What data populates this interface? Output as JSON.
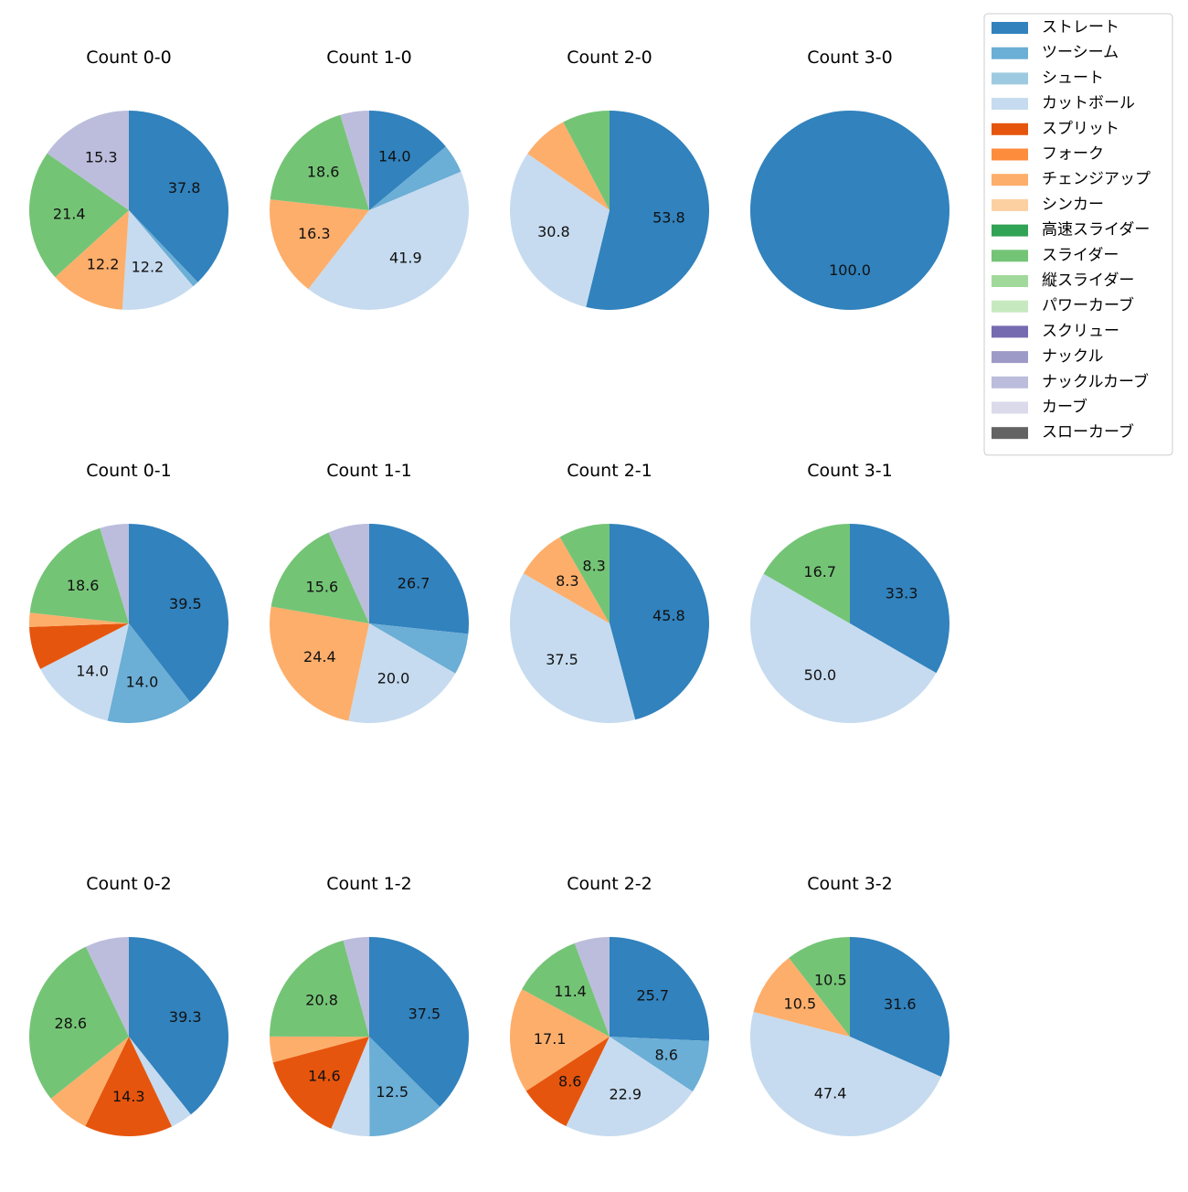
{
  "chart_data": {
    "type": "pie",
    "legend_position": "top-right",
    "legend": [
      {
        "name": "ストレート",
        "color": "#3182bd"
      },
      {
        "name": "ツーシーム",
        "color": "#6baed6"
      },
      {
        "name": "シュート",
        "color": "#9ecae1"
      },
      {
        "name": "カットボール",
        "color": "#c6dbef"
      },
      {
        "name": "スプリット",
        "color": "#e6550d"
      },
      {
        "name": "フォーク",
        "color": "#fd8d3c"
      },
      {
        "name": "チェンジアップ",
        "color": "#fdae6b"
      },
      {
        "name": "シンカー",
        "color": "#fdd0a2"
      },
      {
        "name": "高速スライダー",
        "color": "#31a354"
      },
      {
        "name": "スライダー",
        "color": "#74c476"
      },
      {
        "name": "縦スライダー",
        "color": "#a1d99b"
      },
      {
        "name": "パワーカーブ",
        "color": "#c7e9c0"
      },
      {
        "name": "スクリュー",
        "color": "#756bb1"
      },
      {
        "name": "ナックル",
        "color": "#9e9ac8"
      },
      {
        "name": "ナックルカーブ",
        "color": "#bcbddc"
      },
      {
        "name": "カーブ",
        "color": "#dadaeb"
      },
      {
        "name": "スローカーブ",
        "color": "#636363"
      }
    ],
    "pies": [
      {
        "title": "Count 0-0",
        "slices": [
          {
            "category": "ストレート",
            "value": 37.8,
            "label": "37.8"
          },
          {
            "category": "ツーシーム",
            "value": 1.0,
            "label": ""
          },
          {
            "category": "カットボール",
            "value": 12.2,
            "label": "12.2"
          },
          {
            "category": "チェンジアップ",
            "value": 12.2,
            "label": "12.2"
          },
          {
            "category": "スライダー",
            "value": 21.4,
            "label": "21.4"
          },
          {
            "category": "ナックルカーブ",
            "value": 15.3,
            "label": "15.3"
          }
        ]
      },
      {
        "title": "Count 1-0",
        "slices": [
          {
            "category": "ストレート",
            "value": 14.0,
            "label": "14.0"
          },
          {
            "category": "ツーシーム",
            "value": 4.7,
            "label": ""
          },
          {
            "category": "カットボール",
            "value": 41.9,
            "label": "41.9"
          },
          {
            "category": "チェンジアップ",
            "value": 16.3,
            "label": "16.3"
          },
          {
            "category": "スライダー",
            "value": 18.6,
            "label": "18.6"
          },
          {
            "category": "ナックルカーブ",
            "value": 4.7,
            "label": ""
          }
        ]
      },
      {
        "title": "Count 2-0",
        "slices": [
          {
            "category": "ストレート",
            "value": 53.8,
            "label": "53.8"
          },
          {
            "category": "カットボール",
            "value": 30.8,
            "label": "30.8"
          },
          {
            "category": "チェンジアップ",
            "value": 7.7,
            "label": ""
          },
          {
            "category": "スライダー",
            "value": 7.7,
            "label": ""
          }
        ]
      },
      {
        "title": "Count 3-0",
        "slices": [
          {
            "category": "ストレート",
            "value": 100.0,
            "label": "100.0"
          }
        ]
      },
      {
        "title": "Count 0-1",
        "slices": [
          {
            "category": "ストレート",
            "value": 39.5,
            "label": "39.5"
          },
          {
            "category": "ツーシーム",
            "value": 14.0,
            "label": "14.0"
          },
          {
            "category": "カットボール",
            "value": 14.0,
            "label": "14.0"
          },
          {
            "category": "スプリット",
            "value": 7.0,
            "label": ""
          },
          {
            "category": "チェンジアップ",
            "value": 2.3,
            "label": ""
          },
          {
            "category": "スライダー",
            "value": 18.6,
            "label": "18.6"
          },
          {
            "category": "ナックルカーブ",
            "value": 4.7,
            "label": ""
          }
        ]
      },
      {
        "title": "Count 1-1",
        "slices": [
          {
            "category": "ストレート",
            "value": 26.7,
            "label": "26.7"
          },
          {
            "category": "ツーシーム",
            "value": 6.7,
            "label": ""
          },
          {
            "category": "カットボール",
            "value": 20.0,
            "label": "20.0"
          },
          {
            "category": "チェンジアップ",
            "value": 24.4,
            "label": "24.4"
          },
          {
            "category": "スライダー",
            "value": 15.6,
            "label": "15.6"
          },
          {
            "category": "ナックルカーブ",
            "value": 6.7,
            "label": ""
          }
        ]
      },
      {
        "title": "Count 2-1",
        "slices": [
          {
            "category": "ストレート",
            "value": 45.8,
            "label": "45.8"
          },
          {
            "category": "カットボール",
            "value": 37.5,
            "label": "37.5"
          },
          {
            "category": "チェンジアップ",
            "value": 8.3,
            "label": "8.3"
          },
          {
            "category": "スライダー",
            "value": 8.3,
            "label": "8.3"
          }
        ]
      },
      {
        "title": "Count 3-1",
        "slices": [
          {
            "category": "ストレート",
            "value": 33.3,
            "label": "33.3"
          },
          {
            "category": "カットボール",
            "value": 50.0,
            "label": "50.0"
          },
          {
            "category": "スライダー",
            "value": 16.7,
            "label": "16.7"
          }
        ]
      },
      {
        "title": "Count 0-2",
        "slices": [
          {
            "category": "ストレート",
            "value": 39.3,
            "label": "39.3"
          },
          {
            "category": "カットボール",
            "value": 3.6,
            "label": ""
          },
          {
            "category": "スプリット",
            "value": 14.3,
            "label": "14.3"
          },
          {
            "category": "チェンジアップ",
            "value": 7.1,
            "label": ""
          },
          {
            "category": "スライダー",
            "value": 28.6,
            "label": "28.6"
          },
          {
            "category": "ナックルカーブ",
            "value": 7.1,
            "label": ""
          }
        ]
      },
      {
        "title": "Count 1-2",
        "slices": [
          {
            "category": "ストレート",
            "value": 37.5,
            "label": "37.5"
          },
          {
            "category": "ツーシーム",
            "value": 12.5,
            "label": "12.5"
          },
          {
            "category": "カットボール",
            "value": 6.3,
            "label": ""
          },
          {
            "category": "スプリット",
            "value": 14.6,
            "label": "14.6"
          },
          {
            "category": "チェンジアップ",
            "value": 4.2,
            "label": ""
          },
          {
            "category": "スライダー",
            "value": 20.8,
            "label": "20.8"
          },
          {
            "category": "ナックルカーブ",
            "value": 4.2,
            "label": ""
          }
        ]
      },
      {
        "title": "Count 2-2",
        "slices": [
          {
            "category": "ストレート",
            "value": 25.7,
            "label": "25.7"
          },
          {
            "category": "ツーシーム",
            "value": 8.6,
            "label": "8.6"
          },
          {
            "category": "カットボール",
            "value": 22.9,
            "label": "22.9"
          },
          {
            "category": "スプリット",
            "value": 8.6,
            "label": "8.6"
          },
          {
            "category": "チェンジアップ",
            "value": 17.1,
            "label": "17.1"
          },
          {
            "category": "スライダー",
            "value": 11.4,
            "label": "11.4"
          },
          {
            "category": "ナックルカーブ",
            "value": 5.7,
            "label": ""
          }
        ]
      },
      {
        "title": "Count 3-2",
        "slices": [
          {
            "category": "ストレート",
            "value": 31.6,
            "label": "31.6"
          },
          {
            "category": "カットボール",
            "value": 47.4,
            "label": "47.4"
          },
          {
            "category": "チェンジアップ",
            "value": 10.5,
            "label": "10.5"
          },
          {
            "category": "スライダー",
            "value": 10.5,
            "label": "10.5"
          }
        ]
      }
    ]
  }
}
